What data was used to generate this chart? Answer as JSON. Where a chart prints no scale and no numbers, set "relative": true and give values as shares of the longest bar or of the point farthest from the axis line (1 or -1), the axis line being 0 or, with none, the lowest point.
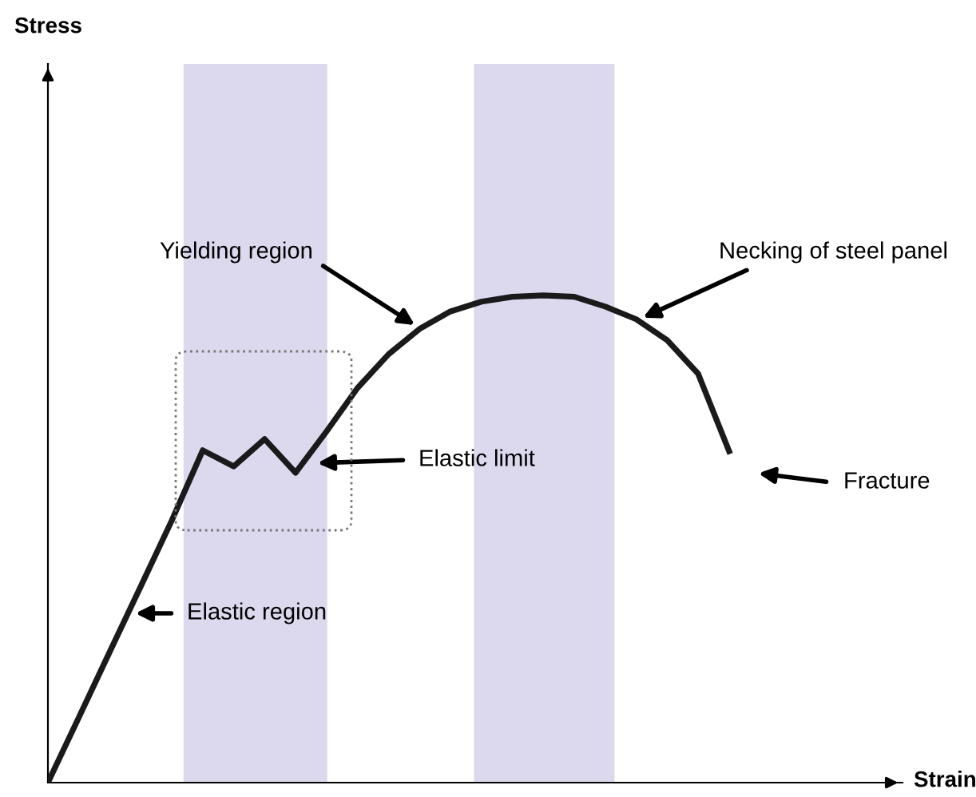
{
  "chart_data": {
    "type": "line",
    "relative": true,
    "categories": [
      null,
      null,
      null,
      null,
      null,
      null,
      null,
      null,
      null,
      null,
      null,
      null,
      null,
      null,
      null,
      null,
      null,
      null,
      null,
      null,
      null,
      null,
      null
    ],
    "series": [
      {
        "color": "#1a1a1a",
        "values": [
          0,
          0.134,
          0.269,
          0.403,
          0.538,
          0.682,
          0.649,
          0.705,
          0.636,
          0.721,
          0.81,
          0.879,
          0.931,
          0.967,
          0.987,
          0.997,
          1,
          0.997,
          0.977,
          0.951,
          0.908,
          0.839,
          0.68
        ]
      }
    ],
    "annotations": [
      "Yielding region",
      "Necking of steel panel",
      "Elastic limit",
      "Fracture",
      "Elastic region",
      "Stress",
      "Strain"
    ],
    "grid": false,
    "marker": "none",
    "line_style": "solid"
  }
}
